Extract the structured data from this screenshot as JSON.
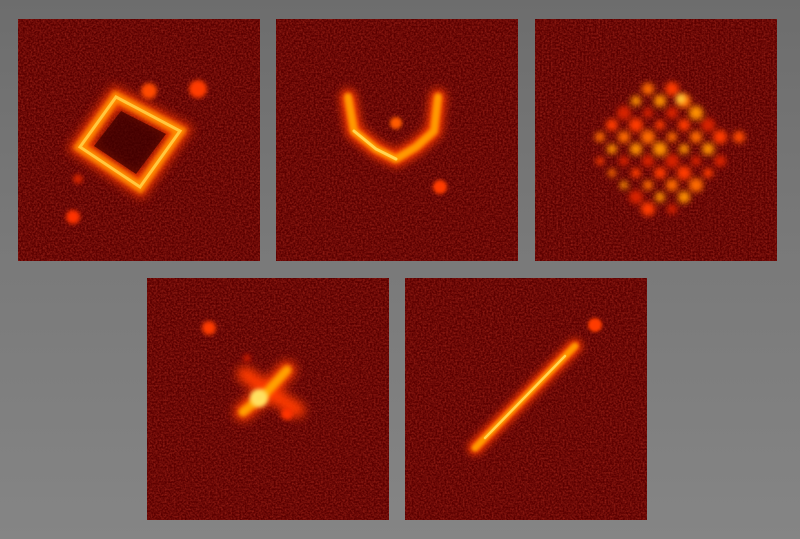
{
  "scene": {
    "background_color": "#777777",
    "panel_base_color": "#5e0000",
    "glow_colors": {
      "hot_core": "#fff07a",
      "bright": "#ffb000",
      "mid": "#ff4a00",
      "dim": "#c01800"
    }
  },
  "panels": [
    {
      "shape": "tilted-square-outline",
      "extra_spots": 3
    },
    {
      "shape": "y-shaped-glyph",
      "extra_spots": 2
    },
    {
      "shape": "dot-lattice",
      "extra_spots": 0
    },
    {
      "shape": "x-cross-with-dots",
      "extra_spots": 3
    },
    {
      "shape": "diagonal-line",
      "extra_spots": 1
    }
  ]
}
